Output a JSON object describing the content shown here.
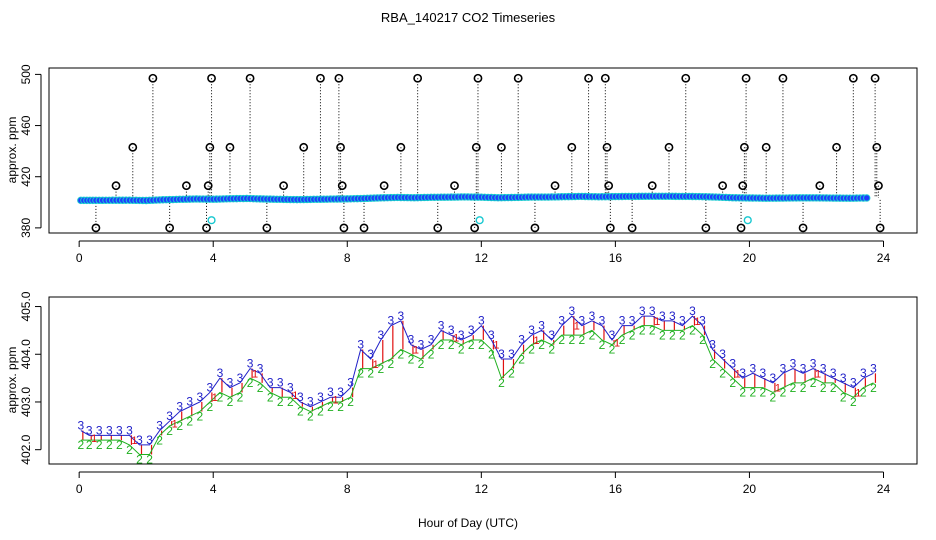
{
  "chart_data": {
    "title": "RBA_140217  CO2 Timeseries",
    "xlabel": "Hour of Day (UTC)",
    "panels": [
      {
        "name": "top",
        "type": "scatter",
        "ylabel": "approx. ppm",
        "xlim": [
          -0.9,
          25.0
        ],
        "ylim": [
          376,
          505
        ],
        "xticks": [
          0,
          4,
          8,
          12,
          16,
          20,
          24
        ],
        "xtick_labels": [
          "0",
          "4",
          "8",
          "12",
          "16",
          "20",
          "24"
        ],
        "yticks": [
          380,
          420,
          460,
          500
        ],
        "ytick_labels": [
          "380",
          "420",
          "460",
          "500"
        ],
        "baseline_points": [
          [
            0.05,
            401.5
          ],
          [
            0.5,
            401.5
          ],
          [
            1.0,
            401.6
          ],
          [
            1.5,
            401.6
          ],
          [
            2.0,
            401.4
          ],
          [
            2.5,
            402.0
          ],
          [
            3.0,
            402.3
          ],
          [
            3.5,
            402.6
          ],
          [
            4.0,
            402.4
          ],
          [
            4.5,
            402.8
          ],
          [
            5.0,
            403.0
          ],
          [
            5.5,
            402.6
          ],
          [
            6.0,
            402.3
          ],
          [
            6.5,
            402.1
          ],
          [
            7.0,
            402.3
          ],
          [
            7.5,
            402.5
          ],
          [
            8.0,
            402.7
          ],
          [
            8.5,
            403.0
          ],
          [
            9.0,
            403.5
          ],
          [
            9.5,
            403.8
          ],
          [
            10.0,
            403.6
          ],
          [
            10.5,
            403.9
          ],
          [
            11.0,
            404.0
          ],
          [
            11.5,
            404.2
          ],
          [
            12.0,
            404.0
          ],
          [
            12.5,
            403.6
          ],
          [
            13.0,
            403.8
          ],
          [
            13.5,
            404.1
          ],
          [
            14.0,
            404.1
          ],
          [
            14.5,
            404.4
          ],
          [
            15.0,
            404.6
          ],
          [
            15.5,
            404.3
          ],
          [
            16.0,
            404.5
          ],
          [
            16.5,
            404.6
          ],
          [
            17.0,
            404.7
          ],
          [
            17.5,
            404.7
          ],
          [
            18.0,
            404.6
          ],
          [
            18.5,
            404.5
          ],
          [
            19.0,
            404.1
          ],
          [
            19.5,
            403.6
          ],
          [
            20.0,
            403.4
          ],
          [
            20.5,
            403.2
          ],
          [
            21.0,
            403.3
          ],
          [
            21.5,
            403.5
          ],
          [
            22.0,
            403.5
          ],
          [
            22.5,
            403.3
          ],
          [
            23.0,
            403.2
          ],
          [
            23.5,
            403.4
          ]
        ],
        "outlier_points": [
          [
            0.5,
            380
          ],
          [
            1.1,
            413
          ],
          [
            1.6,
            443
          ],
          [
            2.2,
            497
          ],
          [
            2.7,
            380
          ],
          [
            3.2,
            413
          ],
          [
            3.8,
            380
          ],
          [
            3.85,
            413
          ],
          [
            3.9,
            443
          ],
          [
            3.95,
            497
          ],
          [
            4.5,
            443
          ],
          [
            5.1,
            497
          ],
          [
            5.6,
            380
          ],
          [
            6.1,
            413
          ],
          [
            6.7,
            443
          ],
          [
            7.2,
            497
          ],
          [
            7.75,
            497
          ],
          [
            7.8,
            443
          ],
          [
            7.85,
            413
          ],
          [
            7.9,
            380
          ],
          [
            8.5,
            380
          ],
          [
            9.1,
            413
          ],
          [
            9.6,
            443
          ],
          [
            10.1,
            497
          ],
          [
            10.7,
            380
          ],
          [
            11.2,
            413
          ],
          [
            11.8,
            380
          ],
          [
            11.85,
            443
          ],
          [
            11.9,
            497
          ],
          [
            12.6,
            443
          ],
          [
            13.1,
            497
          ],
          [
            13.6,
            380
          ],
          [
            14.2,
            413
          ],
          [
            14.7,
            443
          ],
          [
            15.2,
            497
          ],
          [
            15.7,
            497
          ],
          [
            15.75,
            443
          ],
          [
            15.8,
            413
          ],
          [
            15.85,
            380
          ],
          [
            16.5,
            380
          ],
          [
            17.1,
            413
          ],
          [
            17.6,
            443
          ],
          [
            18.1,
            497
          ],
          [
            18.7,
            380
          ],
          [
            19.2,
            413
          ],
          [
            19.75,
            380
          ],
          [
            19.8,
            413
          ],
          [
            19.85,
            443
          ],
          [
            19.9,
            497
          ],
          [
            20.5,
            443
          ],
          [
            21.0,
            497
          ],
          [
            21.6,
            380
          ],
          [
            22.1,
            413
          ],
          [
            22.6,
            443
          ],
          [
            23.1,
            497
          ],
          [
            23.75,
            497
          ],
          [
            23.8,
            443
          ],
          [
            23.85,
            413
          ],
          [
            23.9,
            380
          ]
        ],
        "cyan_points": [
          [
            3.95,
            386
          ],
          [
            11.95,
            386
          ],
          [
            19.95,
            386
          ]
        ],
        "colors": {
          "baseline_fill": "#1f3cff",
          "baseline_edge": "#18c8d0",
          "outlier_edge": "#000000",
          "cyan_edge": "#18c8d0",
          "stem": "#000000"
        }
      },
      {
        "name": "bottom",
        "type": "line",
        "ylabel": "approx. ppm",
        "xlim": [
          -0.9,
          25.0
        ],
        "ylim": [
          401.7,
          405.2
        ],
        "xticks": [
          0,
          4,
          8,
          12,
          16,
          20,
          24
        ],
        "xtick_labels": [
          "0",
          "4",
          "8",
          "12",
          "16",
          "20",
          "24"
        ],
        "yticks": [
          402.0,
          403.0,
          404.0,
          405.0
        ],
        "ytick_labels": [
          "402.0",
          "403.0",
          "404.0",
          "405.0"
        ],
        "marker_3": "3",
        "marker_2": "2",
        "marker_1": "1",
        "series": [
          {
            "name": "3",
            "color": "#2020c8",
            "x": [
              0.05,
              0.3,
              0.6,
              0.9,
              1.2,
              1.5,
              1.8,
              2.1,
              2.4,
              2.7,
              3.0,
              3.3,
              3.6,
              3.9,
              4.2,
              4.5,
              4.8,
              5.1,
              5.4,
              5.7,
              6.0,
              6.3,
              6.6,
              6.9,
              7.2,
              7.5,
              7.8,
              8.1,
              8.4,
              8.7,
              9.0,
              9.3,
              9.6,
              9.9,
              10.2,
              10.5,
              10.8,
              11.1,
              11.4,
              11.7,
              12.0,
              12.3,
              12.6,
              12.9,
              13.2,
              13.5,
              13.8,
              14.1,
              14.4,
              14.7,
              15.0,
              15.3,
              15.6,
              15.9,
              16.2,
              16.5,
              16.8,
              17.1,
              17.4,
              17.7,
              18.0,
              18.3,
              18.6,
              18.9,
              19.2,
              19.5,
              19.8,
              20.1,
              20.4,
              20.7,
              21.0,
              21.3,
              21.6,
              21.9,
              22.2,
              22.5,
              22.8,
              23.1,
              23.4,
              23.7
            ],
            "values": [
              402.4,
              402.3,
              402.3,
              402.3,
              402.3,
              402.3,
              402.1,
              402.1,
              402.4,
              402.6,
              402.8,
              402.9,
              403.0,
              403.2,
              403.5,
              403.3,
              403.4,
              403.7,
              403.6,
              403.3,
              403.3,
              403.2,
              403.0,
              402.9,
              403.0,
              403.1,
              403.1,
              403.3,
              404.1,
              403.9,
              404.3,
              404.6,
              404.7,
              404.2,
              404.1,
              404.2,
              404.5,
              404.4,
              404.3,
              404.4,
              404.6,
              404.3,
              403.9,
              403.9,
              404.2,
              404.4,
              404.5,
              404.3,
              404.6,
              404.8,
              404.6,
              404.7,
              404.6,
              404.3,
              404.6,
              404.6,
              404.8,
              404.8,
              404.7,
              404.7,
              404.6,
              404.8,
              404.6,
              404.1,
              403.9,
              403.7,
              403.5,
              403.6,
              403.5,
              403.4,
              403.6,
              403.7,
              403.6,
              403.7,
              403.6,
              403.5,
              403.4,
              403.3,
              403.5,
              403.6
            ]
          },
          {
            "name": "2",
            "color": "#20b020",
            "x": [
              0.05,
              0.3,
              0.6,
              0.9,
              1.2,
              1.5,
              1.8,
              2.1,
              2.4,
              2.7,
              3.0,
              3.3,
              3.6,
              3.9,
              4.2,
              4.5,
              4.8,
              5.1,
              5.4,
              5.7,
              6.0,
              6.3,
              6.6,
              6.9,
              7.2,
              7.5,
              7.8,
              8.1,
              8.4,
              8.7,
              9.0,
              9.3,
              9.6,
              9.9,
              10.2,
              10.5,
              10.8,
              11.1,
              11.4,
              11.7,
              12.0,
              12.3,
              12.6,
              12.9,
              13.2,
              13.5,
              13.8,
              14.1,
              14.4,
              14.7,
              15.0,
              15.3,
              15.6,
              15.9,
              16.2,
              16.5,
              16.8,
              17.1,
              17.4,
              17.7,
              18.0,
              18.3,
              18.6,
              18.9,
              19.2,
              19.5,
              19.8,
              20.1,
              20.4,
              20.7,
              21.0,
              21.3,
              21.6,
              21.9,
              22.2,
              22.5,
              22.8,
              23.1,
              23.4,
              23.7
            ],
            "values": [
              402.2,
              402.2,
              402.2,
              402.2,
              402.2,
              402.1,
              401.9,
              401.9,
              402.3,
              402.5,
              402.6,
              402.7,
              402.8,
              403.0,
              403.2,
              403.1,
              403.2,
              403.5,
              403.4,
              403.2,
              403.1,
              403.1,
              402.9,
              402.8,
              402.9,
              403.0,
              403.0,
              403.1,
              403.7,
              403.7,
              403.8,
              403.9,
              404.1,
              404.0,
              403.9,
              404.1,
              404.3,
              404.3,
              404.2,
              404.3,
              404.3,
              404.1,
              403.5,
              403.7,
              404.0,
              404.2,
              404.3,
              404.2,
              404.4,
              404.4,
              404.4,
              404.5,
              404.3,
              404.2,
              404.4,
              404.5,
              404.6,
              404.6,
              404.5,
              404.5,
              404.5,
              404.6,
              404.4,
              403.9,
              403.7,
              403.5,
              403.3,
              403.3,
              403.3,
              403.2,
              403.3,
              403.4,
              403.4,
              403.5,
              403.4,
              403.4,
              403.2,
              403.1,
              403.3,
              403.4
            ]
          }
        ]
      }
    ]
  }
}
